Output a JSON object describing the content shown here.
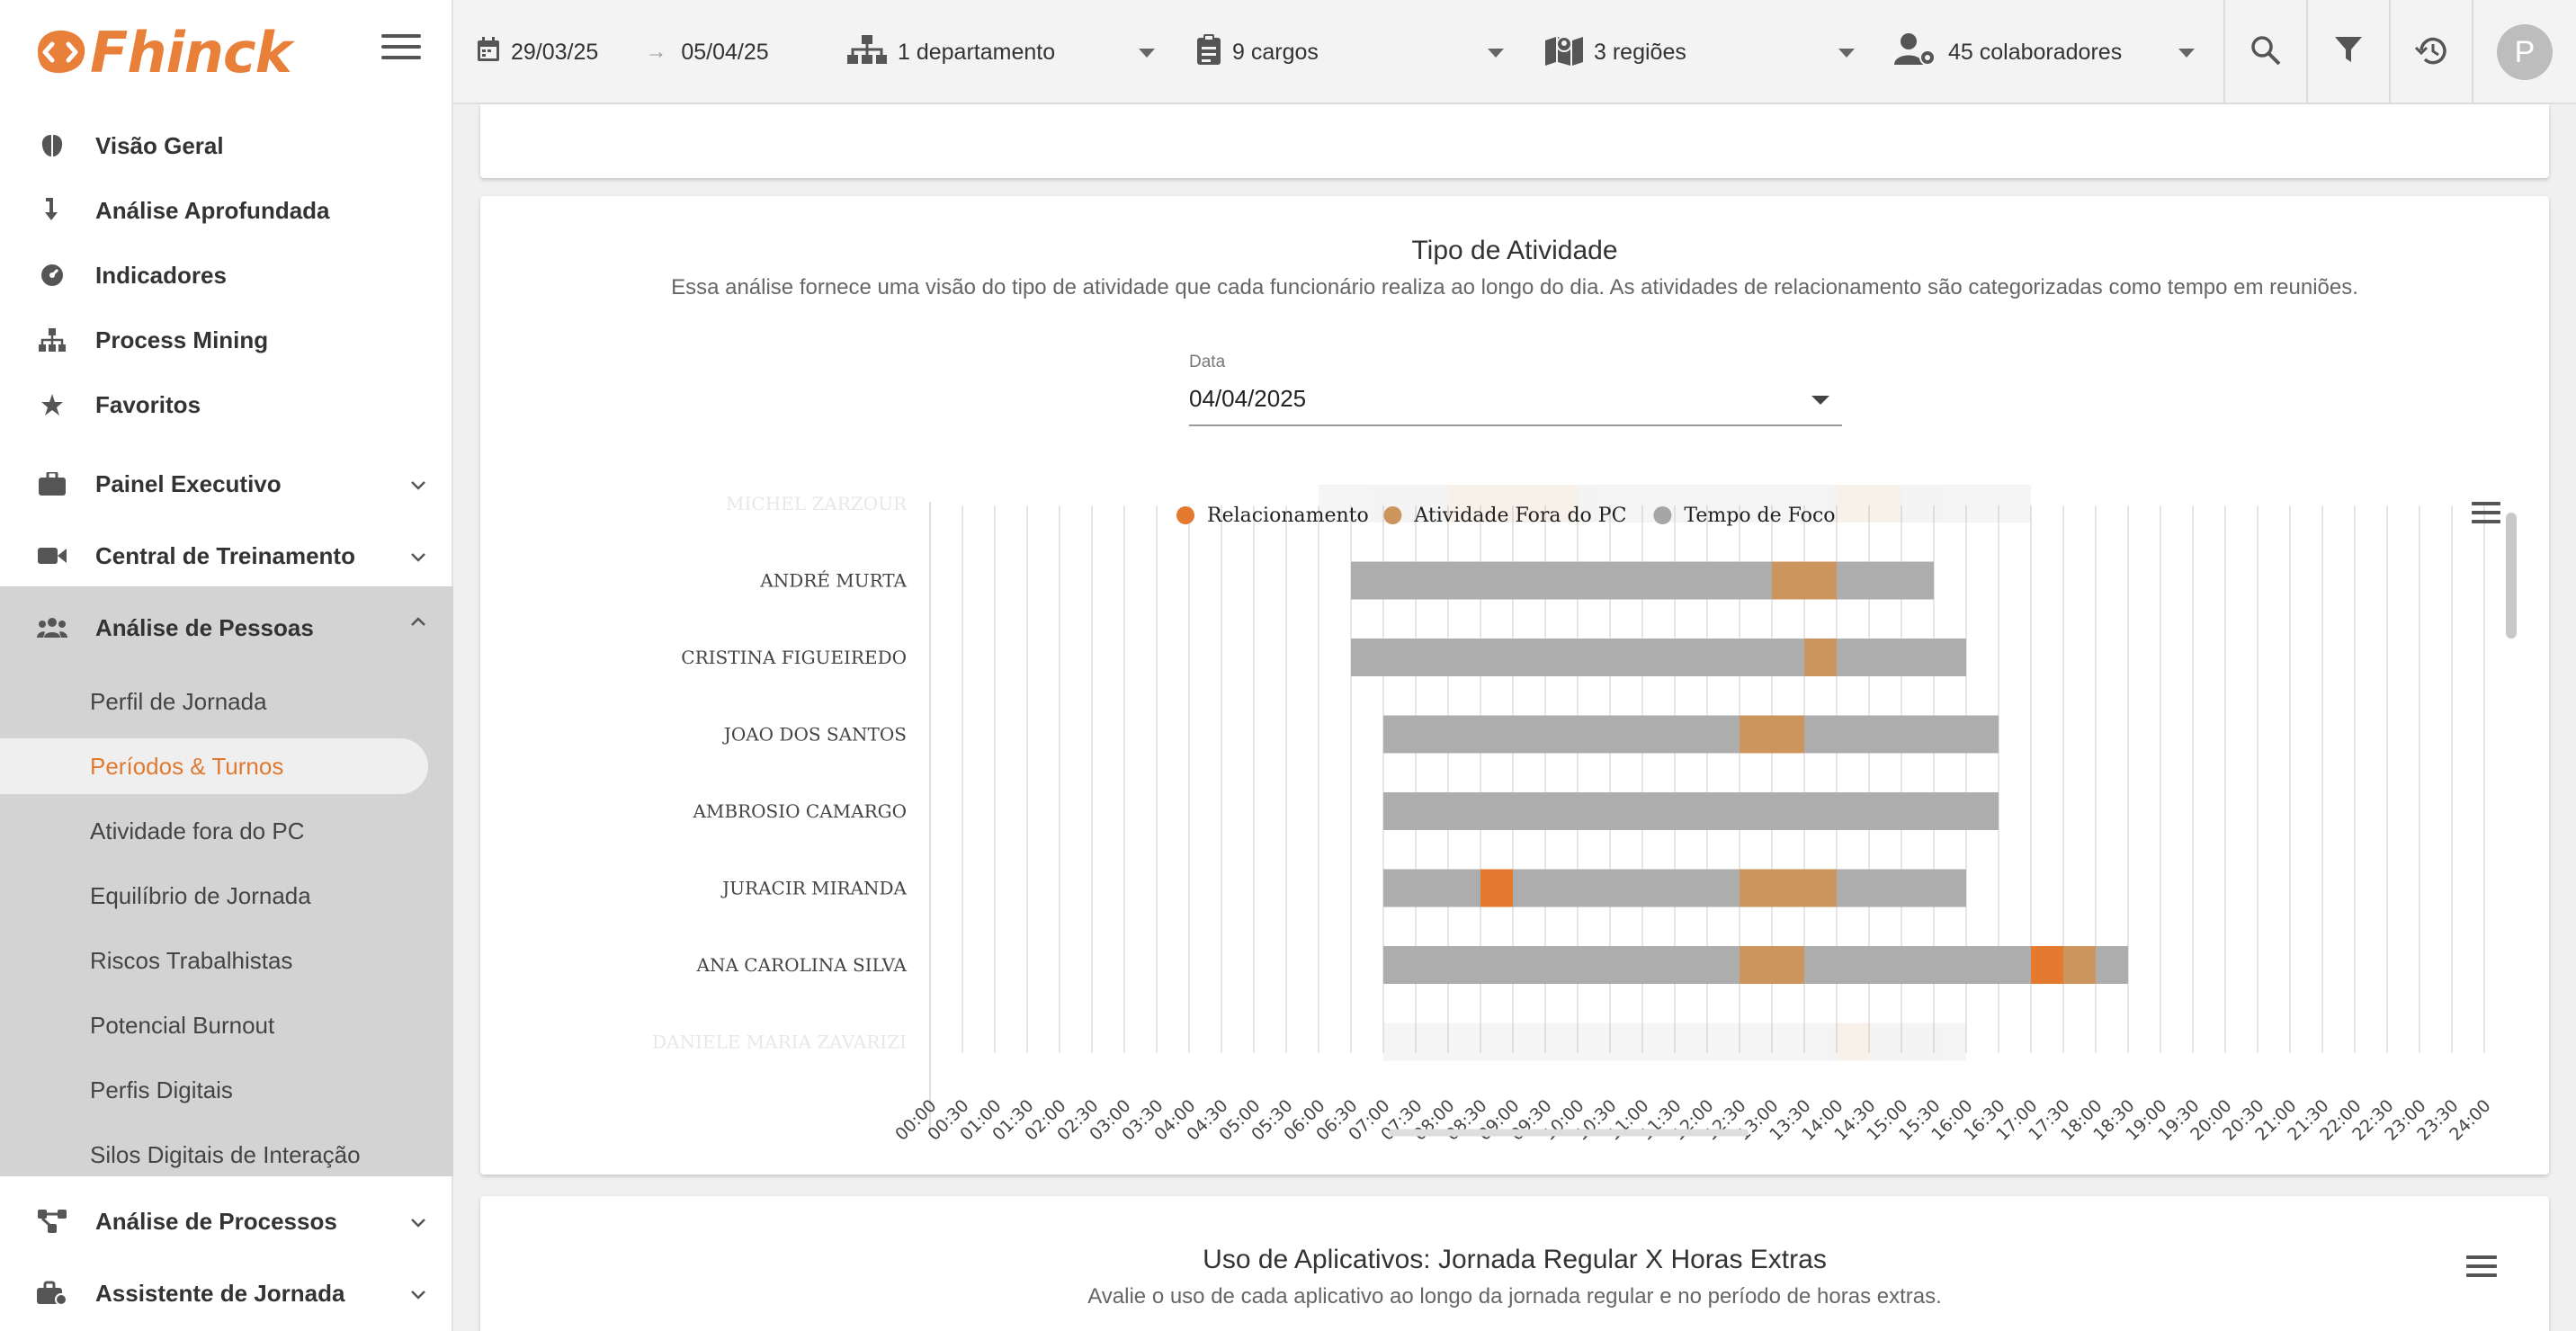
{
  "app": {
    "name": "Fhinck",
    "avatar_letter": "P",
    "accent": "#e8803a"
  },
  "sidebar": {
    "top_items": [
      {
        "label": "Visão Geral",
        "icon": "brain-icon"
      },
      {
        "label": "Análise Aprofundada",
        "icon": "arrow-down-turn-icon"
      },
      {
        "label": "Indicadores",
        "icon": "gauge-icon"
      },
      {
        "label": "Process Mining",
        "icon": "sitemap-icon"
      },
      {
        "label": "Favoritos",
        "icon": "star-icon"
      }
    ],
    "group_items": [
      {
        "label": "Painel Executivo",
        "icon": "briefcase-icon"
      },
      {
        "label": "Central de Treinamento",
        "icon": "video-camera-icon"
      }
    ],
    "expanded_group": {
      "label": "Análise de Pessoas",
      "icon": "users-icon",
      "items": [
        "Perfil de Jornada",
        "Períodos & Turnos",
        "Atividade fora do PC",
        "Equilíbrio de Jornada",
        "Riscos Trabalhistas",
        "Potencial Burnout",
        "Perfis Digitais",
        "Silos Digitais de Interação"
      ],
      "active_index": 1
    },
    "bottom_items": [
      {
        "label": "Análise de Processos",
        "icon": "process-flow-icon"
      },
      {
        "label": "Assistente de Jornada",
        "icon": "toolbox-icon"
      }
    ]
  },
  "topbar": {
    "date_from": "29/03/25",
    "date_to": "05/04/25",
    "departments": "1 departamento",
    "roles": "9 cargos",
    "regions": "3 regiões",
    "collaborators": "45 colaboradores"
  },
  "card_main": {
    "title": "Tipo de Atividade",
    "subtitle": "Essa análise fornece uma visão do tipo de atividade que cada funcionário realiza ao longo do dia. As atividades de relacionamento são categorizadas como tempo em reuniões.",
    "date_label": "Data",
    "date_value": "04/04/2025"
  },
  "card_bottom": {
    "title": "Uso de Aplicativos: Jornada Regular X Horas Extras",
    "subtitle": "Avalie o uso de cada aplicativo ao longo da jornada regular e no período de horas extras."
  },
  "chart_data": {
    "type": "bar",
    "orientation": "horizontal-timeline",
    "legend_position": "top",
    "series": [
      {
        "name": "Relacionamento",
        "color": "#e47a30"
      },
      {
        "name": "Atividade Fora do PC",
        "color": "#cc955e"
      },
      {
        "name": "Tempo de Foco",
        "color": "#adadad"
      }
    ],
    "x_ticks": [
      "00:00",
      "00:30",
      "01:00",
      "01:30",
      "02:00",
      "02:30",
      "03:00",
      "03:30",
      "04:00",
      "04:30",
      "05:00",
      "05:30",
      "06:00",
      "06:30",
      "07:00",
      "07:30",
      "08:00",
      "08:30",
      "09:00",
      "09:30",
      "10:00",
      "10:30",
      "11:00",
      "11:30",
      "12:00",
      "12:30",
      "13:00",
      "13:30",
      "14:00",
      "14:30",
      "15:00",
      "15:30",
      "16:00",
      "16:30",
      "17:00",
      "17:30",
      "18:00",
      "18:30",
      "19:00",
      "19:30",
      "20:00",
      "20:30",
      "21:00",
      "21:30",
      "22:00",
      "22:30",
      "23:00",
      "23:30",
      "24:00"
    ],
    "xlim": [
      "00:00",
      "24:00"
    ],
    "grid": true,
    "rows": [
      {
        "name": "MICHEL ZARZOUR",
        "faded": true,
        "segments": [
          {
            "series": "Tempo de Foco",
            "start": "06:00",
            "end": "08:00"
          },
          {
            "series": "Atividade Fora do PC",
            "start": "08:00",
            "end": "10:00"
          },
          {
            "series": "Tempo de Foco",
            "start": "10:00",
            "end": "14:00"
          },
          {
            "series": "Atividade Fora do PC",
            "start": "14:00",
            "end": "15:00"
          },
          {
            "series": "Tempo de Foco",
            "start": "15:00",
            "end": "17:00"
          }
        ]
      },
      {
        "name": "ANDRÉ MURTA",
        "segments": [
          {
            "series": "Tempo de Foco",
            "start": "06:30",
            "end": "13:00"
          },
          {
            "series": "Atividade Fora do PC",
            "start": "13:00",
            "end": "14:00"
          },
          {
            "series": "Tempo de Foco",
            "start": "14:00",
            "end": "15:30"
          }
        ]
      },
      {
        "name": "CRISTINA FIGUEIREDO",
        "segments": [
          {
            "series": "Tempo de Foco",
            "start": "06:30",
            "end": "13:30"
          },
          {
            "series": "Atividade Fora do PC",
            "start": "13:30",
            "end": "14:00"
          },
          {
            "series": "Tempo de Foco",
            "start": "14:00",
            "end": "16:00"
          }
        ]
      },
      {
        "name": "JOAO DOS SANTOS",
        "segments": [
          {
            "series": "Tempo de Foco",
            "start": "07:00",
            "end": "12:30"
          },
          {
            "series": "Atividade Fora do PC",
            "start": "12:30",
            "end": "13:30"
          },
          {
            "series": "Tempo de Foco",
            "start": "13:30",
            "end": "16:30"
          }
        ]
      },
      {
        "name": "AMBROSIO CAMARGO",
        "segments": [
          {
            "series": "Tempo de Foco",
            "start": "07:00",
            "end": "16:30"
          }
        ]
      },
      {
        "name": "JURACIR MIRANDA",
        "segments": [
          {
            "series": "Tempo de Foco",
            "start": "07:00",
            "end": "08:30"
          },
          {
            "series": "Relacionamento",
            "start": "08:30",
            "end": "09:00"
          },
          {
            "series": "Tempo de Foco",
            "start": "09:00",
            "end": "12:30"
          },
          {
            "series": "Atividade Fora do PC",
            "start": "12:30",
            "end": "14:00"
          },
          {
            "series": "Tempo de Foco",
            "start": "14:00",
            "end": "16:00"
          }
        ]
      },
      {
        "name": "ANA CAROLINA SILVA",
        "segments": [
          {
            "series": "Tempo de Foco",
            "start": "07:00",
            "end": "12:30"
          },
          {
            "series": "Atividade Fora do PC",
            "start": "12:30",
            "end": "13:30"
          },
          {
            "series": "Tempo de Foco",
            "start": "13:30",
            "end": "17:00"
          },
          {
            "series": "Relacionamento",
            "start": "17:00",
            "end": "17:30"
          },
          {
            "series": "Atividade Fora do PC",
            "start": "17:30",
            "end": "18:00"
          },
          {
            "series": "Tempo de Foco",
            "start": "18:00",
            "end": "18:30"
          }
        ]
      },
      {
        "name": "DANIELE MARIA ZAVARIZI",
        "faded": true,
        "segments": [
          {
            "series": "Tempo de Foco",
            "start": "07:00",
            "end": "14:00"
          },
          {
            "series": "Atividade Fora do PC",
            "start": "14:00",
            "end": "14:30"
          },
          {
            "series": "Tempo de Foco",
            "start": "14:30",
            "end": "16:00"
          }
        ]
      }
    ]
  }
}
